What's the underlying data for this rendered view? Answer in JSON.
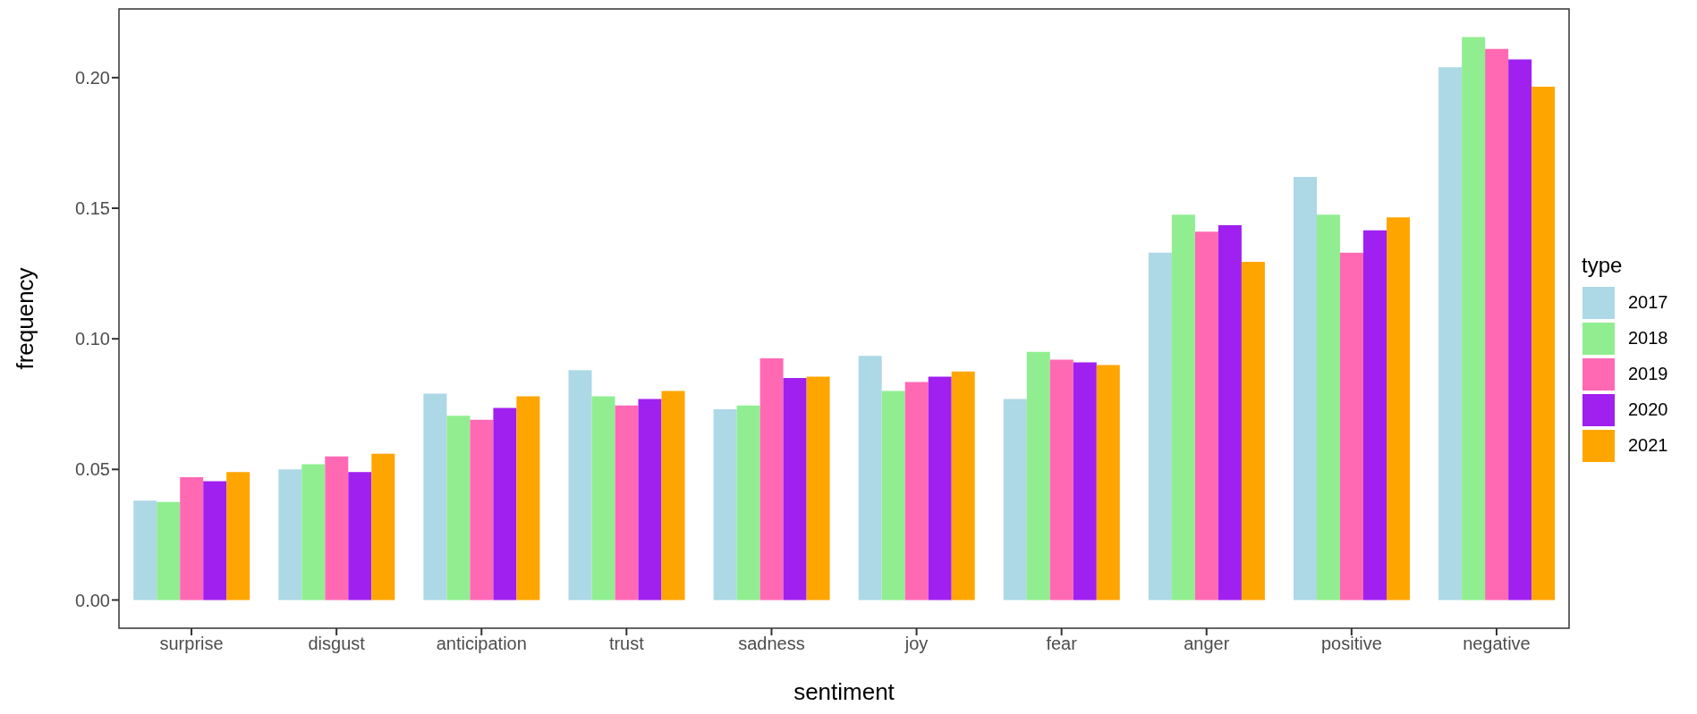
{
  "chart_data": {
    "type": "bar",
    "xlabel": "sentiment",
    "ylabel": "frequency",
    "legend_title": "type",
    "legend": "right",
    "categories": [
      "surprise",
      "disgust",
      "anticipation",
      "trust",
      "sadness",
      "joy",
      "fear",
      "anger",
      "positive",
      "negative"
    ],
    "series": [
      {
        "name": "2017",
        "color": "#add8e6",
        "values": [
          0.038,
          0.05,
          0.079,
          0.088,
          0.073,
          0.0935,
          0.077,
          0.133,
          0.162,
          0.204
        ]
      },
      {
        "name": "2018",
        "color": "#90ee90",
        "values": [
          0.0375,
          0.052,
          0.0705,
          0.078,
          0.0745,
          0.08,
          0.095,
          0.1475,
          0.1475,
          0.2155
        ]
      },
      {
        "name": "2019",
        "color": "#ff69b4",
        "values": [
          0.047,
          0.055,
          0.069,
          0.0745,
          0.0925,
          0.0835,
          0.092,
          0.141,
          0.133,
          0.211
        ]
      },
      {
        "name": "2020",
        "color": "#a020f0",
        "values": [
          0.0455,
          0.049,
          0.0735,
          0.077,
          0.085,
          0.0855,
          0.091,
          0.1435,
          0.1415,
          0.207
        ]
      },
      {
        "name": "2021",
        "color": "#ffa500",
        "values": [
          0.049,
          0.056,
          0.078,
          0.08,
          0.0855,
          0.0875,
          0.09,
          0.1295,
          0.1465,
          0.1965
        ]
      }
    ],
    "ylim": [
      -0.0108,
      0.2263
    ],
    "yticks": [
      {
        "value": 0,
        "label": "0.00"
      },
      {
        "value": 0.05,
        "label": "0.05"
      },
      {
        "value": 0.1,
        "label": "0.10"
      },
      {
        "value": 0.15,
        "label": "0.15"
      },
      {
        "value": 0.2,
        "label": "0.20"
      }
    ],
    "grid": false
  }
}
